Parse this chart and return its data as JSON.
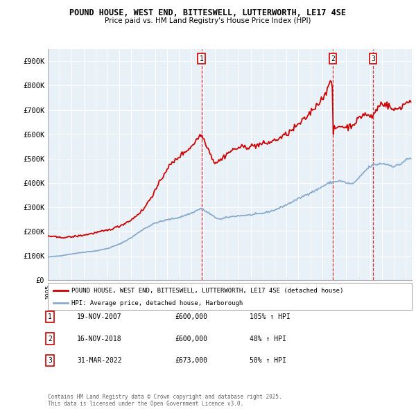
{
  "title": "POUND HOUSE, WEST END, BITTESWELL, LUTTERWORTH, LE17 4SE",
  "subtitle": "Price paid vs. HM Land Registry's House Price Index (HPI)",
  "house_color": "#cc0000",
  "hpi_color": "#99bbdd",
  "hpi_line_color": "#88aacc",
  "background_color": "#ffffff",
  "chart_bg_color": "#e8f0f8",
  "grid_color": "#ffffff",
  "ylim": [
    0,
    950000
  ],
  "yticks": [
    0,
    100000,
    200000,
    300000,
    400000,
    500000,
    600000,
    700000,
    800000,
    900000
  ],
  "ytick_labels": [
    "£0",
    "£100K",
    "£200K",
    "£300K",
    "£400K",
    "£500K",
    "£600K",
    "£700K",
    "£800K",
    "£900K"
  ],
  "sale1_year": 2007.88,
  "sale1_date": "19-NOV-2007",
  "sale1_price": 600000,
  "sale1_pct": "105%",
  "sale2_year": 2018.88,
  "sale2_date": "16-NOV-2018",
  "sale2_price": 600000,
  "sale2_pct": "48%",
  "sale3_year": 2022.25,
  "sale3_date": "31-MAR-2022",
  "sale3_price": 673000,
  "sale3_pct": "50%",
  "legend_house": "POUND HOUSE, WEST END, BITTESWELL, LUTTERWORTH, LE17 4SE (detached house)",
  "legend_hpi": "HPI: Average price, detached house, Harborough",
  "footnote": "Contains HM Land Registry data © Crown copyright and database right 2025.\nThis data is licensed under the Open Government Licence v3.0.",
  "xlim_start": 1995.0,
  "xlim_end": 2025.5
}
